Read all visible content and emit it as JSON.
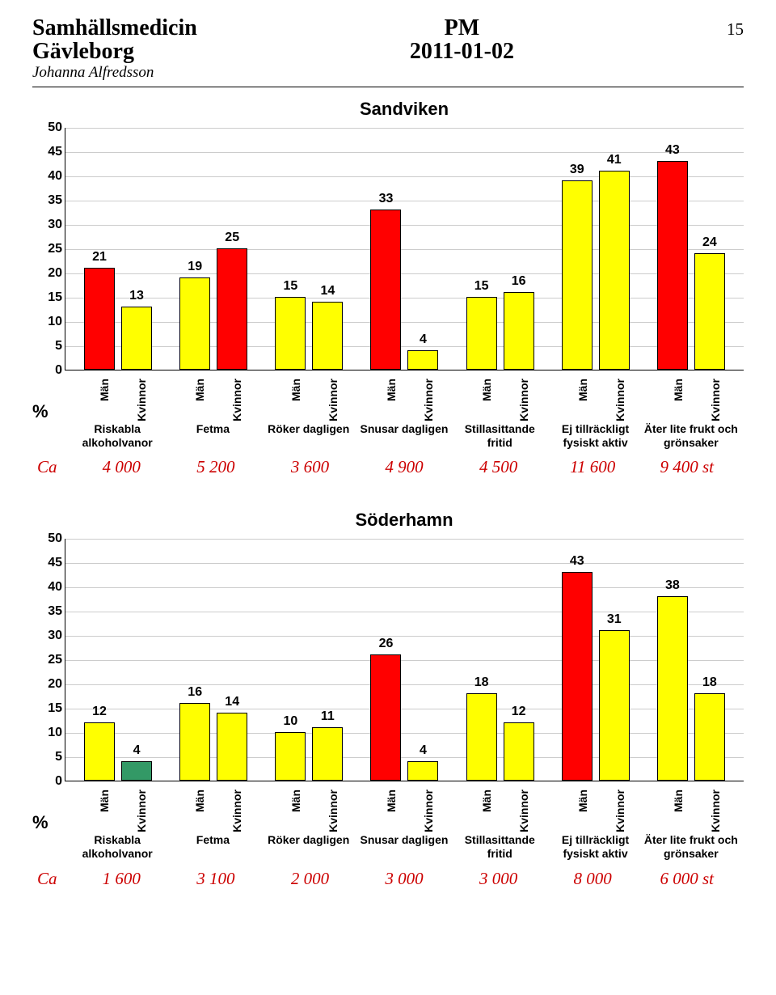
{
  "header": {
    "left_line1": "Samhällsmedicin",
    "left_line2": "Gävleborg",
    "left_line3": "Johanna Alfredsson",
    "center_line1": "PM",
    "center_line2": "2011-01-02",
    "page_number": "15"
  },
  "colors": {
    "red": "#ff0000",
    "yellow": "#ffff00",
    "green": "#339966",
    "grid": "#cccccc",
    "ca_text": "#cc0000"
  },
  "xlabels": {
    "man": "Män",
    "kvinnor": "Kvinnor"
  },
  "ylabel": "%",
  "categories": [
    "Riskabla alkoholvanor",
    "Fetma",
    "Röker dagligen",
    "Snusar dagligen",
    "Stillasittande fritid",
    "Ej tillräckligt fysiskt aktiv",
    "Äter lite frukt och grönsaker"
  ],
  "chart1": {
    "title": "Sandviken",
    "ymax": 50,
    "ytick_step": 5,
    "groups": [
      {
        "bars": [
          {
            "value": 21,
            "color": "#ff0000"
          },
          {
            "value": 13,
            "color": "#ffff00"
          }
        ]
      },
      {
        "bars": [
          {
            "value": 19,
            "color": "#ffff00"
          },
          {
            "value": 25,
            "color": "#ff0000"
          }
        ]
      },
      {
        "bars": [
          {
            "value": 15,
            "color": "#ffff00"
          },
          {
            "value": 14,
            "color": "#ffff00"
          }
        ]
      },
      {
        "bars": [
          {
            "value": 33,
            "color": "#ff0000"
          },
          {
            "value": 4,
            "color": "#ffff00"
          }
        ]
      },
      {
        "bars": [
          {
            "value": 15,
            "color": "#ffff00"
          },
          {
            "value": 16,
            "color": "#ffff00"
          }
        ]
      },
      {
        "bars": [
          {
            "value": 39,
            "color": "#ffff00"
          },
          {
            "value": 41,
            "color": "#ffff00"
          }
        ]
      },
      {
        "bars": [
          {
            "value": 43,
            "color": "#ff0000"
          },
          {
            "value": 24,
            "color": "#ffff00"
          }
        ]
      }
    ],
    "ca_label": "Ca",
    "ca_values": [
      "4 000",
      "5 200",
      "3 600",
      "4 900",
      "4 500",
      "11 600",
      "9 400 st"
    ]
  },
  "chart2": {
    "title": "Söderhamn",
    "ymax": 50,
    "ytick_step": 5,
    "groups": [
      {
        "bars": [
          {
            "value": 12,
            "color": "#ffff00"
          },
          {
            "value": 4,
            "color": "#339966"
          }
        ]
      },
      {
        "bars": [
          {
            "value": 16,
            "color": "#ffff00"
          },
          {
            "value": 14,
            "color": "#ffff00"
          }
        ]
      },
      {
        "bars": [
          {
            "value": 10,
            "color": "#ffff00"
          },
          {
            "value": 11,
            "color": "#ffff00"
          }
        ]
      },
      {
        "bars": [
          {
            "value": 26,
            "color": "#ff0000"
          },
          {
            "value": 4,
            "color": "#ffff00"
          }
        ]
      },
      {
        "bars": [
          {
            "value": 18,
            "color": "#ffff00"
          },
          {
            "value": 12,
            "color": "#ffff00"
          }
        ]
      },
      {
        "bars": [
          {
            "value": 43,
            "color": "#ff0000"
          },
          {
            "value": 31,
            "color": "#ffff00"
          }
        ]
      },
      {
        "bars": [
          {
            "value": 38,
            "color": "#ffff00"
          },
          {
            "value": 18,
            "color": "#ffff00"
          }
        ]
      }
    ],
    "ca_label": "Ca",
    "ca_values": [
      "1 600",
      "3 100",
      "2 000",
      "3 000",
      "3 000",
      "8 000",
      "6 000 st"
    ]
  }
}
